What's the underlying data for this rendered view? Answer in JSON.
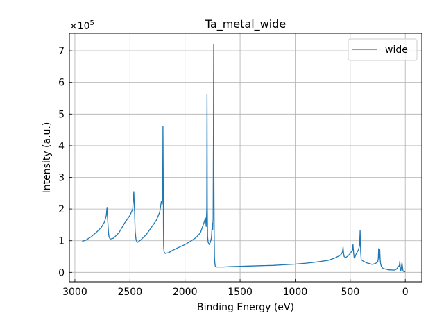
{
  "chart_data": {
    "type": "line",
    "title": "Ta_metal_wide",
    "xlabel": "Binding Energy (eV)",
    "ylabel": "Intensity (a.u.)",
    "y_multiplier_label": "×10",
    "y_multiplier_exponent": "5",
    "xlim": [
      3050,
      -150
    ],
    "ylim": [
      -0.3,
      7.55
    ],
    "x_reversed": true,
    "grid": true,
    "legend_position": "top-right",
    "x_ticks": [
      3000,
      2500,
      2000,
      1500,
      1000,
      500,
      0
    ],
    "x_tick_labels": [
      "3000",
      "2500",
      "2000",
      "1500",
      "1000",
      "500",
      "0"
    ],
    "y_ticks": [
      0,
      1,
      2,
      3,
      4,
      5,
      6,
      7
    ],
    "y_tick_labels": [
      "0",
      "1",
      "2",
      "3",
      "4",
      "5",
      "6",
      "7"
    ],
    "series": [
      {
        "name": "wide",
        "color": "#1f77b4",
        "x": [
          2935,
          2900,
          2850,
          2800,
          2760,
          2730,
          2715,
          2708,
          2703,
          2695,
          2690,
          2680,
          2650,
          2600,
          2550,
          2500,
          2475,
          2465,
          2458,
          2453,
          2445,
          2440,
          2430,
          2400,
          2350,
          2300,
          2260,
          2230,
          2215,
          2208,
          2203,
          2200,
          2198,
          2196,
          2194,
          2190,
          2180,
          2150,
          2100,
          2050,
          2000,
          1950,
          1900,
          1860,
          1840,
          1825,
          1815,
          1812,
          1808,
          1805,
          1803,
          1800,
          1798,
          1795,
          1790,
          1780,
          1770,
          1760,
          1755,
          1750,
          1748,
          1745,
          1742,
          1740,
          1738,
          1735,
          1732,
          1728,
          1725,
          1720,
          1710,
          1700,
          1650,
          1600,
          1500,
          1400,
          1300,
          1200,
          1100,
          1000,
          900,
          800,
          700,
          650,
          600,
          580,
          570,
          565,
          560,
          555,
          548,
          540,
          520,
          500,
          490,
          480,
          475,
          470,
          465,
          460,
          450,
          440,
          430,
          425,
          420,
          415,
          410,
          405,
          400,
          380,
          350,
          300,
          270,
          250,
          245,
          242,
          240,
          238,
          235,
          232,
          228,
          225,
          222,
          218,
          210,
          200,
          150,
          100,
          80,
          70,
          60,
          55,
          50,
          45,
          40,
          30,
          20,
          10,
          0
        ],
        "y": [
          0.98,
          1.02,
          1.13,
          1.28,
          1.42,
          1.6,
          1.8,
          2.05,
          1.7,
          1.25,
          1.12,
          1.05,
          1.08,
          1.25,
          1.55,
          1.8,
          2.0,
          2.55,
          1.9,
          1.3,
          1.05,
          0.99,
          0.95,
          1.03,
          1.2,
          1.45,
          1.65,
          1.9,
          2.25,
          2.15,
          2.4,
          4.6,
          3.1,
          1.4,
          0.8,
          0.65,
          0.6,
          0.62,
          0.72,
          0.8,
          0.88,
          0.98,
          1.1,
          1.25,
          1.45,
          1.6,
          1.72,
          1.65,
          1.45,
          1.7,
          2.05,
          5.63,
          2.15,
          1.15,
          0.95,
          0.88,
          0.95,
          1.1,
          1.4,
          1.55,
          1.35,
          1.7,
          4.0,
          7.2,
          3.3,
          1.2,
          0.45,
          0.25,
          0.2,
          0.18,
          0.17,
          0.17,
          0.17,
          0.18,
          0.19,
          0.2,
          0.21,
          0.22,
          0.24,
          0.26,
          0.29,
          0.33,
          0.38,
          0.44,
          0.52,
          0.58,
          0.65,
          0.8,
          0.6,
          0.5,
          0.48,
          0.47,
          0.52,
          0.6,
          0.65,
          0.7,
          0.88,
          0.65,
          0.48,
          0.45,
          0.55,
          0.62,
          0.68,
          0.72,
          0.78,
          0.85,
          1.32,
          0.65,
          0.4,
          0.35,
          0.3,
          0.25,
          0.28,
          0.33,
          0.45,
          0.75,
          0.55,
          0.74,
          0.45,
          0.73,
          0.4,
          0.3,
          0.25,
          0.2,
          0.15,
          0.12,
          0.08,
          0.07,
          0.1,
          0.15,
          0.2,
          0.18,
          0.35,
          0.12,
          0.05,
          0.3,
          0.04,
          0.02,
          0.02
        ]
      }
    ]
  }
}
